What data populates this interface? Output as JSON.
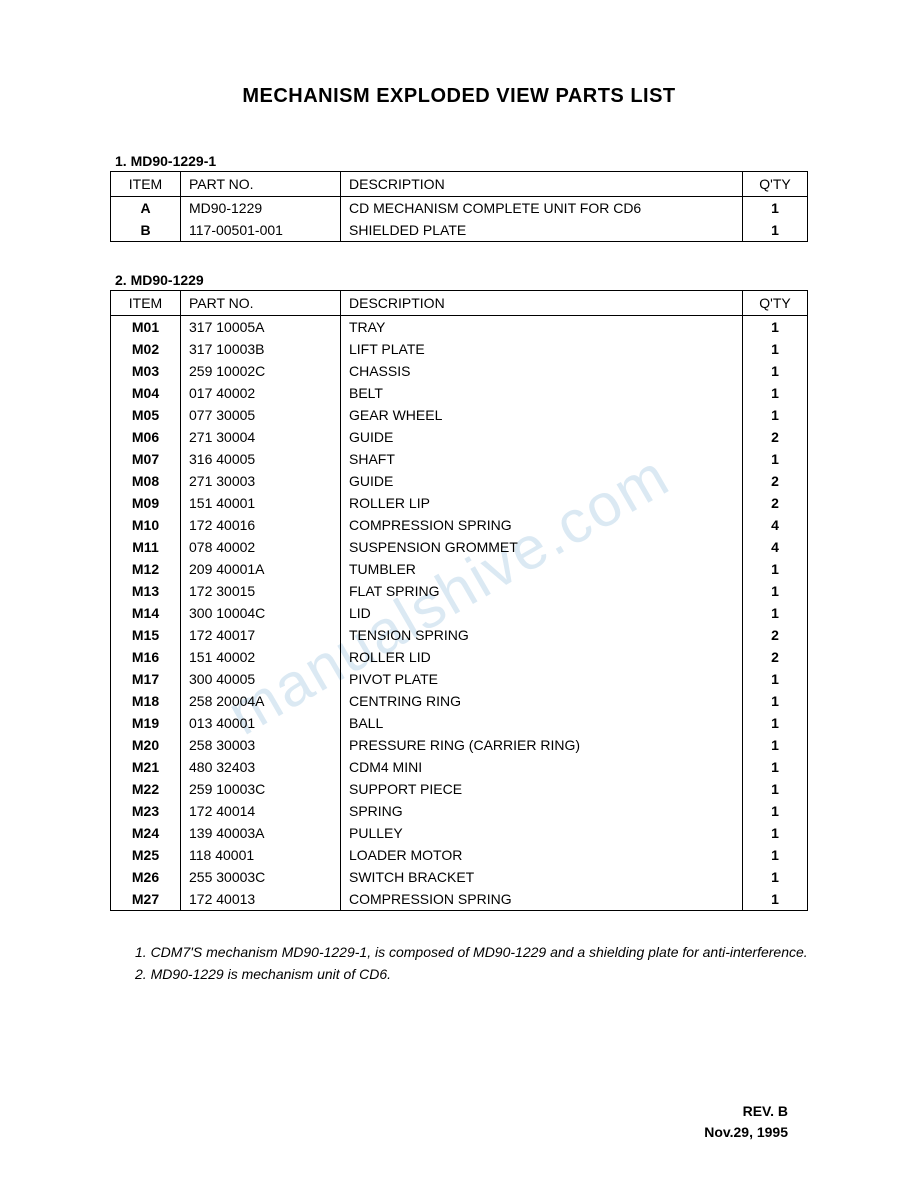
{
  "title": "MECHANISM EXPLODED VIEW PARTS LIST",
  "watermark": "manualshive.com",
  "table1": {
    "label": "1. MD90-1229-1",
    "headers": {
      "item": "ITEM",
      "partno": "PART NO.",
      "description": "DESCRIPTION",
      "qty": "Q'TY"
    },
    "rows": [
      {
        "item": "A",
        "partno": "MD90-1229",
        "description": "CD MECHANISM COMPLETE UNIT FOR CD6",
        "qty": "1"
      },
      {
        "item": "B",
        "partno": "117-00501-001",
        "description": "SHIELDED PLATE",
        "qty": "1"
      }
    ]
  },
  "table2": {
    "label": "2. MD90-1229",
    "headers": {
      "item": "ITEM",
      "partno": "PART NO.",
      "description": "DESCRIPTION",
      "qty": "Q'TY"
    },
    "rows": [
      {
        "item": "M01",
        "partno": "317 10005A",
        "description": "TRAY",
        "qty": "1"
      },
      {
        "item": "M02",
        "partno": "317 10003B",
        "description": "LIFT PLATE",
        "qty": "1"
      },
      {
        "item": "M03",
        "partno": "259 10002C",
        "description": "CHASSIS",
        "qty": "1"
      },
      {
        "item": "M04",
        "partno": "017 40002",
        "description": "BELT",
        "qty": "1"
      },
      {
        "item": "M05",
        "partno": "077 30005",
        "description": "GEAR WHEEL",
        "qty": "1"
      },
      {
        "item": "M06",
        "partno": "271 30004",
        "description": "GUIDE",
        "qty": "2"
      },
      {
        "item": "M07",
        "partno": "316 40005",
        "description": "SHAFT",
        "qty": "1"
      },
      {
        "item": "M08",
        "partno": "271 30003",
        "description": "GUIDE",
        "qty": "2"
      },
      {
        "item": "M09",
        "partno": "151 40001",
        "description": "ROLLER LIP",
        "qty": "2"
      },
      {
        "item": "M10",
        "partno": "172 40016",
        "description": "COMPRESSION SPRING",
        "qty": "4"
      },
      {
        "item": "M11",
        "partno": "078 40002",
        "description": "SUSPENSION GROMMET",
        "qty": "4"
      },
      {
        "item": "M12",
        "partno": "209 40001A",
        "description": "TUMBLER",
        "qty": "1"
      },
      {
        "item": "M13",
        "partno": "172 30015",
        "description": "FLAT SPRING",
        "qty": "1"
      },
      {
        "item": "M14",
        "partno": "300 10004C",
        "description": "LID",
        "qty": "1"
      },
      {
        "item": "M15",
        "partno": "172 40017",
        "description": "TENSION SPRING",
        "qty": "2"
      },
      {
        "item": "M16",
        "partno": "151 40002",
        "description": "ROLLER LID",
        "qty": "2"
      },
      {
        "item": "M17",
        "partno": "300 40005",
        "description": "PIVOT PLATE",
        "qty": "1"
      },
      {
        "item": "M18",
        "partno": "258 20004A",
        "description": "CENTRING RING",
        "qty": "1"
      },
      {
        "item": "M19",
        "partno": "013 40001",
        "description": "BALL",
        "qty": "1"
      },
      {
        "item": "M20",
        "partno": "258 30003",
        "description": "PRESSURE RING (CARRIER RING)",
        "qty": "1"
      },
      {
        "item": "M21",
        "partno": "480 32403",
        "description": "CDM4 MINI",
        "qty": "1"
      },
      {
        "item": "M22",
        "partno": "259 10003C",
        "description": "SUPPORT PIECE",
        "qty": "1"
      },
      {
        "item": "M23",
        "partno": "172 40014",
        "description": "SPRING",
        "qty": "1"
      },
      {
        "item": "M24",
        "partno": "139 40003A",
        "description": "PULLEY",
        "qty": "1"
      },
      {
        "item": "M25",
        "partno": "118 40001",
        "description": "LOADER MOTOR",
        "qty": "1"
      },
      {
        "item": "M26",
        "partno": "255 30003C",
        "description": "SWITCH BRACKET",
        "qty": "1"
      },
      {
        "item": "M27",
        "partno": "172 40013",
        "description": "COMPRESSION SPRING",
        "qty": "1"
      }
    ]
  },
  "notes": {
    "note1": "1. CDM7'S mechanism MD90-1229-1, is composed of MD90-1229 and a shielding plate for anti-interference.",
    "note2": "2. MD90-1229 is mechanism unit of CD6."
  },
  "revision": {
    "rev": "REV. B",
    "date": "Nov.29, 1995"
  },
  "styling": {
    "title_fontsize": 20,
    "body_fontsize": 14,
    "border_color": "#000000",
    "background_color": "#ffffff",
    "watermark_color": "#b8d4e8",
    "font_family": "Arial"
  }
}
